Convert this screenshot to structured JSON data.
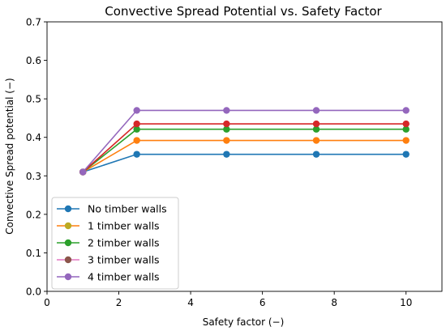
{
  "chart_data": {
    "type": "line",
    "title": "Convective Spread Potential vs. Safety Factor",
    "xlabel": "Safety factor (−)",
    "ylabel": "Convective Spread potential (−)",
    "xlim": [
      0,
      11
    ],
    "ylim": [
      0,
      0.7
    ],
    "xticks": [
      0,
      2,
      4,
      6,
      8,
      10
    ],
    "yticks": [
      0.0,
      0.1,
      0.2,
      0.3,
      0.4,
      0.5,
      0.6,
      0.7
    ],
    "xtick_labels": [
      "0",
      "2",
      "4",
      "6",
      "8",
      "10"
    ],
    "ytick_labels": [
      "0.0",
      "0.1",
      "0.2",
      "0.3",
      "0.4",
      "0.5",
      "0.6",
      "0.7"
    ],
    "grid": false,
    "legend_position": "lower-left",
    "x": [
      1,
      2.5,
      5,
      7.5,
      10
    ],
    "series": [
      {
        "name": "No timber walls",
        "color": "#1f77b4",
        "values": [
          0.31,
          0.356,
          0.356,
          0.356,
          0.356
        ]
      },
      {
        "name": "1 timber walls",
        "color": "#ff7f0e",
        "values": [
          0.31,
          0.392,
          0.392,
          0.392,
          0.392
        ]
      },
      {
        "name": "2 timber walls",
        "color": "#2ca02c",
        "values": [
          0.31,
          0.421,
          0.421,
          0.421,
          0.421
        ]
      },
      {
        "name": "3 timber walls",
        "color": "#d62728",
        "values": [
          0.31,
          0.435,
          0.435,
          0.435,
          0.435
        ]
      },
      {
        "name": "4 timber walls",
        "color": "#9467bd",
        "values": [
          0.31,
          0.47,
          0.47,
          0.47,
          0.47
        ]
      }
    ],
    "legend_entries": [
      {
        "name": "No timber walls",
        "line_color": "#1f77b4",
        "marker_color": "#1f77b4"
      },
      {
        "name": "1 timber walls",
        "line_color": "#ff7f0e",
        "marker_color": "#bcaa23"
      },
      {
        "name": "2 timber walls",
        "line_color": "#2ca02c",
        "marker_color": "#2ca02c"
      },
      {
        "name": "3 timber walls",
        "line_color": "#e377c2",
        "marker_color": "#8c564b"
      },
      {
        "name": "4 timber walls",
        "line_color": "#9467bd",
        "marker_color": "#9467bd"
      }
    ]
  }
}
